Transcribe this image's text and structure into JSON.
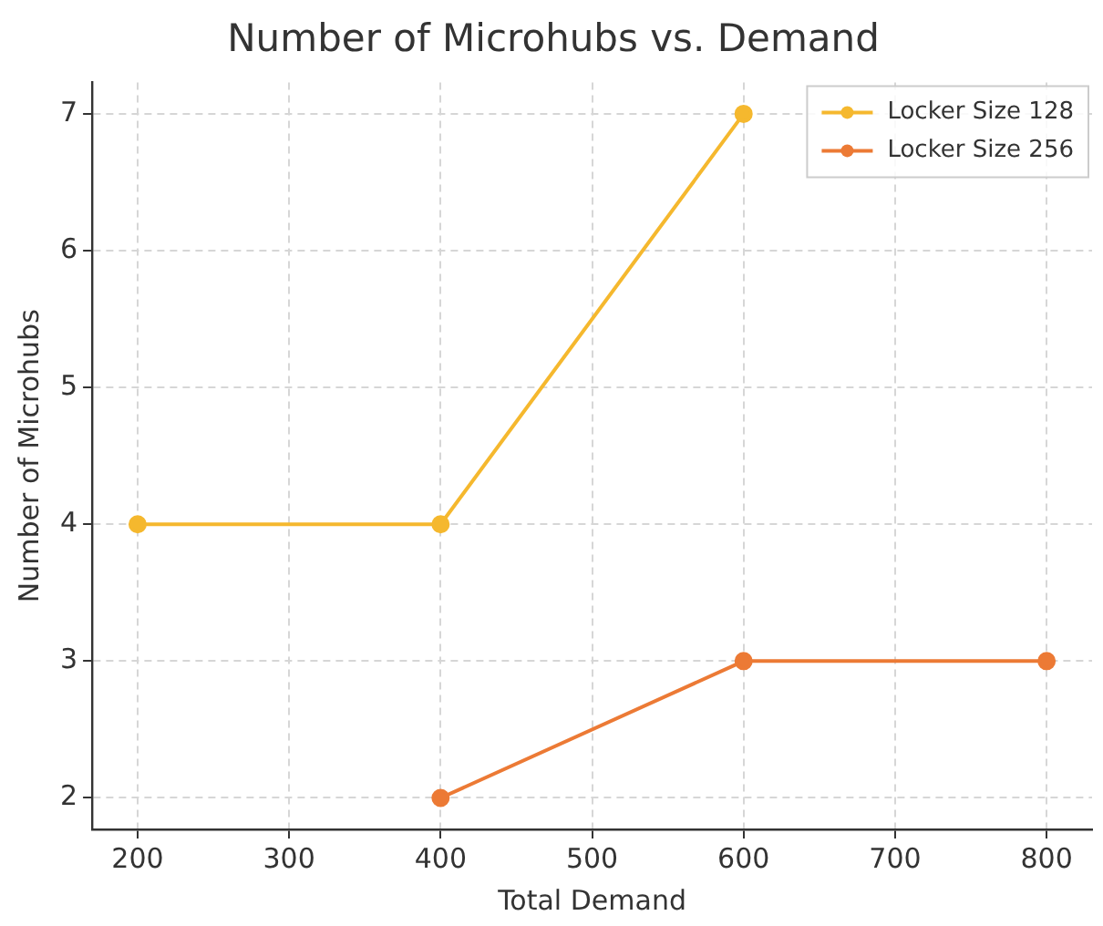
{
  "chart_data": {
    "type": "line",
    "title": "Number of Microhubs vs. Demand",
    "xlabel": "Total Demand",
    "ylabel": "Number of Microhubs",
    "x": [
      200,
      400,
      600,
      800
    ],
    "series": [
      {
        "name": "Locker Size 128",
        "color": "#f5b82e",
        "values": [
          4,
          4,
          7,
          null
        ]
      },
      {
        "name": "Locker Size 256",
        "color": "#ec7a35",
        "values": [
          null,
          2,
          3,
          3
        ]
      }
    ],
    "xlim": [
      170,
      830
    ],
    "xticks": [
      200,
      300,
      400,
      500,
      600,
      700,
      800
    ],
    "ylim": [
      1.77,
      7.23
    ],
    "yticks": [
      2,
      3,
      4,
      5,
      6,
      7
    ],
    "grid": true,
    "legend": "top right",
    "marker": "circle",
    "line_style": "solid"
  }
}
